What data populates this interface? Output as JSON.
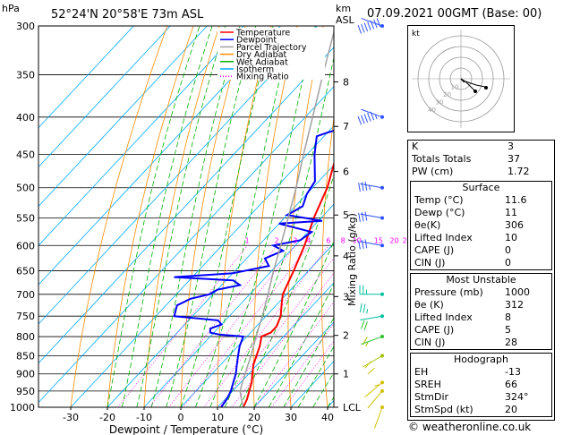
{
  "header": {
    "pressure_unit": "hPa",
    "location": "52°24'N  20°58'E  73m  ASL",
    "height_unit_line1": "km",
    "height_unit_line2": "ASL",
    "datetime": "07.09.2021  00GMT  (Base: 00)"
  },
  "legend": {
    "items": [
      {
        "label": "Temperature",
        "color": "#ff0000"
      },
      {
        "label": "Dewpoint",
        "color": "#0000ff"
      },
      {
        "label": "Parcel Trajectory",
        "color": "#a0a0a0"
      },
      {
        "label": "Dry Adiabat",
        "color": "#ff8c00"
      },
      {
        "label": "Wet Adiabat",
        "color": "#00b000"
      },
      {
        "label": "Isotherm",
        "color": "#00aaff"
      },
      {
        "label": "Mixing Ratio",
        "color": "#ff00ff"
      }
    ]
  },
  "chart_data": {
    "type": "line",
    "xlabel": "Dewpoint / Temperature (°C)",
    "ylabel_right": "Mixing Ratio (g/kg)",
    "x_ticks": [
      "-30",
      "-20",
      "-10",
      "0",
      "10",
      "20",
      "30",
      "40"
    ],
    "pressure_levels": [
      "300",
      "350",
      "400",
      "450",
      "500",
      "550",
      "600",
      "650",
      "700",
      "750",
      "800",
      "850",
      "900",
      "950",
      "1000"
    ],
    "height_km_labels": [
      {
        "km": "8",
        "p": 358
      },
      {
        "km": "7",
        "p": 412
      },
      {
        "km": "6",
        "p": 475
      },
      {
        "km": "5",
        "p": 545
      },
      {
        "km": "4",
        "p": 620
      },
      {
        "km": "3",
        "p": 705
      },
      {
        "km": "2",
        "p": 797
      },
      {
        "km": "1",
        "p": 900
      },
      {
        "km": "LCL",
        "p": 1000
      }
    ],
    "mixing_ratio_labels": [
      "1",
      "2",
      "3",
      "4",
      "6",
      "8",
      "10",
      "15",
      "20",
      "25"
    ],
    "mixing_ratio_values": [
      1,
      2,
      3,
      4,
      6,
      8,
      10,
      15,
      20,
      25
    ],
    "series": [
      {
        "name": "Temperature",
        "color": "#ff0000",
        "points": [
          [
            1000,
            17
          ],
          [
            975,
            16
          ],
          [
            950,
            14.5
          ],
          [
            925,
            13
          ],
          [
            900,
            11
          ],
          [
            875,
            9
          ],
          [
            850,
            7.5
          ],
          [
            825,
            6
          ],
          [
            800,
            4
          ],
          [
            790,
            5.5
          ],
          [
            775,
            5.5
          ],
          [
            750,
            4
          ],
          [
            725,
            1.5
          ],
          [
            700,
            -1
          ],
          [
            650,
            -4
          ],
          [
            600,
            -7.5
          ],
          [
            550,
            -12
          ],
          [
            500,
            -16
          ],
          [
            450,
            -22
          ],
          [
            400,
            -29
          ],
          [
            350,
            -37
          ],
          [
            320,
            -41
          ],
          [
            300,
            -45
          ]
        ]
      },
      {
        "name": "Dewpoint",
        "color": "#0000ff",
        "points": [
          [
            1000,
            11
          ],
          [
            975,
            10.5
          ],
          [
            950,
            9.5
          ],
          [
            925,
            8
          ],
          [
            900,
            6.5
          ],
          [
            875,
            4.5
          ],
          [
            850,
            2.5
          ],
          [
            825,
            0.5
          ],
          [
            800,
            -1
          ],
          [
            795,
            -8
          ],
          [
            790,
            -11
          ],
          [
            780,
            -12
          ],
          [
            770,
            -10
          ],
          [
            760,
            -12
          ],
          [
            750,
            -25
          ],
          [
            725,
            -27
          ],
          [
            710,
            -25
          ],
          [
            700,
            -21
          ],
          [
            690,
            -20
          ],
          [
            680,
            -15
          ],
          [
            670,
            -18
          ],
          [
            663,
            -35
          ],
          [
            655,
            -20
          ],
          [
            640,
            -12
          ],
          [
            625,
            -15
          ],
          [
            610,
            -12
          ],
          [
            600,
            -16
          ],
          [
            590,
            -10
          ],
          [
            575,
            -9
          ],
          [
            560,
            -20
          ],
          [
            555,
            -9
          ],
          [
            545,
            -20
          ],
          [
            530,
            -18
          ],
          [
            510,
            -20
          ],
          [
            490,
            -21
          ],
          [
            450,
            -28
          ],
          [
            425,
            -32
          ],
          [
            420,
            -30
          ],
          [
            405,
            -22
          ],
          [
            395,
            -22
          ],
          [
            375,
            -28
          ],
          [
            350,
            -31
          ],
          [
            320,
            -38
          ],
          [
            310,
            -38
          ],
          [
            300,
            -36
          ]
        ]
      },
      {
        "name": "Parcel Trajectory",
        "color": "#a0a0a0",
        "points": [
          [
            1000,
            17
          ],
          [
            975,
            14.5
          ],
          [
            950,
            12
          ],
          [
            925,
            10.5
          ],
          [
            900,
            9
          ],
          [
            850,
            6
          ],
          [
            800,
            2.5
          ],
          [
            750,
            -1
          ],
          [
            700,
            -5
          ],
          [
            650,
            -9.5
          ],
          [
            600,
            -14
          ],
          [
            550,
            -19
          ],
          [
            500,
            -24.5
          ],
          [
            450,
            -31
          ],
          [
            400,
            -38
          ],
          [
            350,
            -46
          ],
          [
            300,
            -55
          ]
        ]
      }
    ],
    "wind_barbs": [
      {
        "p": 300,
        "dir": 250,
        "spd": 70
      },
      {
        "p": 400,
        "dir": 250,
        "spd": 55
      },
      {
        "p": 500,
        "dir": 260,
        "spd": 35
      },
      {
        "p": 550,
        "dir": 260,
        "spd": 30
      },
      {
        "p": 600,
        "dir": 260,
        "spd": 30
      },
      {
        "p": 700,
        "dir": 270,
        "spd": 25
      },
      {
        "p": 750,
        "dir": 280,
        "spd": 25
      },
      {
        "p": 800,
        "dir": 290,
        "spd": 20
      },
      {
        "p": 850,
        "dir": 300,
        "spd": 15
      },
      {
        "p": 925,
        "dir": 310,
        "spd": 10
      },
      {
        "p": 950,
        "dir": 320,
        "spd": 10
      },
      {
        "p": 1000,
        "dir": 340,
        "spd": 5
      }
    ]
  },
  "hodograph": {
    "label": "kt",
    "ring_labels": [
      "10",
      "20",
      "30",
      "40"
    ]
  },
  "indices": {
    "top": [
      {
        "label": "K",
        "value": "3"
      },
      {
        "label": "Totals Totals",
        "value": "37"
      },
      {
        "label": "PW (cm)",
        "value": "1.72"
      }
    ],
    "surface": {
      "title": "Surface",
      "rows": [
        {
          "label": "Temp (°C)",
          "value": "11.6"
        },
        {
          "label": "Dewp (°C)",
          "value": "11"
        },
        {
          "label": "θe(K)",
          "value": "306"
        },
        {
          "label": "Lifted Index",
          "value": "10"
        },
        {
          "label": "CAPE (J)",
          "value": "0"
        },
        {
          "label": "CIN (J)",
          "value": "0"
        }
      ]
    },
    "most_unstable": {
      "title": "Most Unstable",
      "rows": [
        {
          "label": "Pressure (mb)",
          "value": "1000"
        },
        {
          "label": "θe (K)",
          "value": "312"
        },
        {
          "label": "Lifted Index",
          "value": "8"
        },
        {
          "label": "CAPE (J)",
          "value": "5"
        },
        {
          "label": "CIN (J)",
          "value": "28"
        }
      ]
    },
    "hodograph": {
      "title": "Hodograph",
      "rows": [
        {
          "label": "EH",
          "value": "-13"
        },
        {
          "label": "SREH",
          "value": "66"
        },
        {
          "label": "StmDir",
          "value": "324°"
        },
        {
          "label": "StmSpd (kt)",
          "value": "20"
        }
      ]
    }
  },
  "footer": {
    "copyright": "© weatheronline.co.uk"
  }
}
